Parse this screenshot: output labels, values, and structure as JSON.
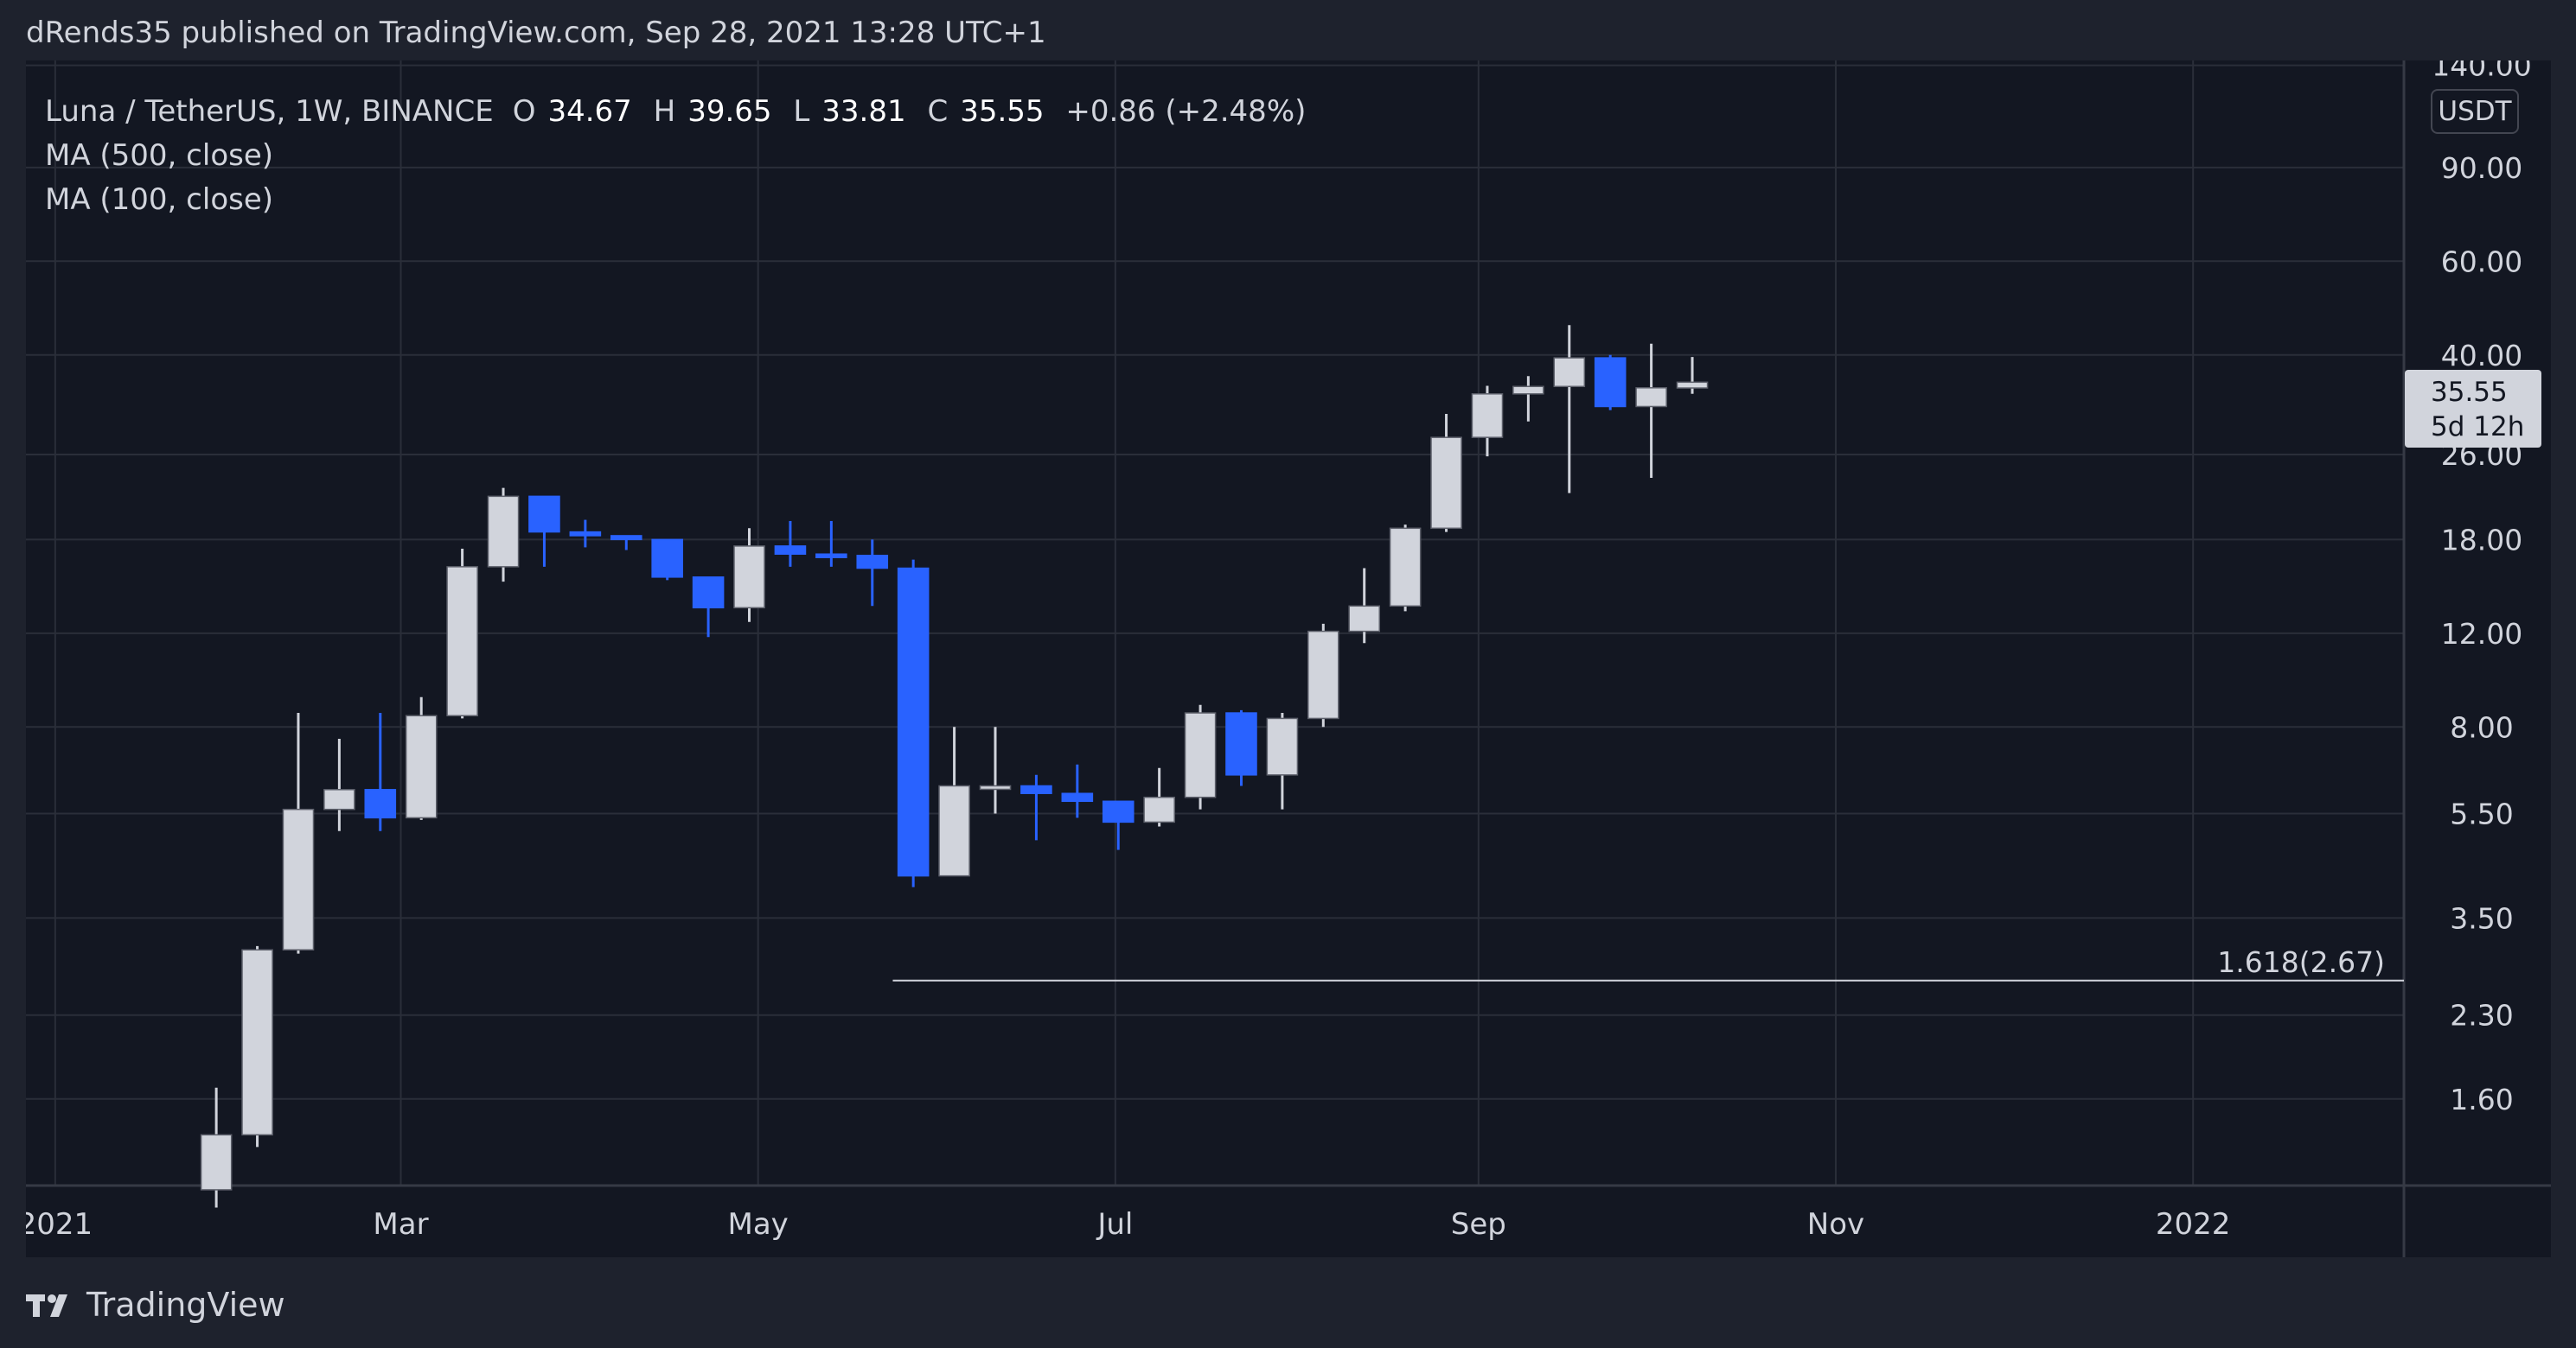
{
  "header": {
    "attribution": "dRends35 published on TradingView.com, Sep 28, 2021 13:28 UTC+1"
  },
  "legend": {
    "symbol": "Luna / TetherUS, 1W, BINANCE",
    "open": {
      "prefix": "O",
      "value": "34.67"
    },
    "high": {
      "prefix": "H",
      "value": "39.65"
    },
    "low": {
      "prefix": "L",
      "value": "33.81"
    },
    "close": {
      "prefix": "C",
      "value": "35.55"
    },
    "change": "+0.86 (+2.48%)",
    "indicators": [
      "MA (500, close)",
      "MA (100, close)"
    ]
  },
  "price_axis": {
    "currency": "USDT",
    "current_price": "35.55",
    "countdown": "5d 12h"
  },
  "footer": {
    "brand": "TradingView"
  },
  "colors": {
    "background": "#131722",
    "frame": "#1e222d",
    "grid": "#2a2e39",
    "up": "#d1d4dc",
    "down": "#2962ff",
    "text": "#d1d4dc"
  },
  "chart_data": {
    "type": "candlestick",
    "scale": "log",
    "timeframe": "1W",
    "symbol": "LUNA/USDT",
    "x_ticks": [
      {
        "date": "2021-01-01",
        "label": "2021"
      },
      {
        "date": "2021-03-01",
        "label": "Mar"
      },
      {
        "date": "2021-05-01",
        "label": "May"
      },
      {
        "date": "2021-07-01",
        "label": "Jul"
      },
      {
        "date": "2021-09-01",
        "label": "Sep"
      },
      {
        "date": "2021-11-01",
        "label": "Nov"
      },
      {
        "date": "2022-01-01",
        "label": "2022"
      }
    ],
    "y_ticks": [
      "1.60",
      "2.30",
      "3.50",
      "5.50",
      "8.00",
      "12.00",
      "18.00",
      "26.00",
      "40.00",
      "60.00",
      "90.00",
      "140.00"
    ],
    "x_range": [
      "2020-12-27",
      "2022-02-06"
    ],
    "y_range": [
      1.1,
      143
    ],
    "candles": [
      {
        "date": "2021-01-25",
        "o": 1.08,
        "h": 1.68,
        "l": 1.0,
        "c": 1.37
      },
      {
        "date": "2021-02-01",
        "o": 1.37,
        "h": 3.1,
        "l": 1.3,
        "c": 3.05
      },
      {
        "date": "2021-02-08",
        "o": 3.05,
        "h": 8.5,
        "l": 3.0,
        "c": 5.6
      },
      {
        "date": "2021-02-15",
        "o": 5.6,
        "h": 7.6,
        "l": 5.1,
        "c": 6.1
      },
      {
        "date": "2021-02-22",
        "o": 6.1,
        "h": 8.5,
        "l": 5.1,
        "c": 5.4
      },
      {
        "date": "2021-03-01",
        "o": 5.4,
        "h": 9.1,
        "l": 5.35,
        "c": 8.4
      },
      {
        "date": "2021-03-08",
        "o": 8.4,
        "h": 17.3,
        "l": 8.3,
        "c": 16.0
      },
      {
        "date": "2021-03-15",
        "o": 16.0,
        "h": 22.5,
        "l": 15.0,
        "c": 21.7
      },
      {
        "date": "2021-03-22",
        "o": 21.7,
        "h": 21.7,
        "l": 16.0,
        "c": 18.6
      },
      {
        "date": "2021-03-29",
        "o": 18.6,
        "h": 19.6,
        "l": 17.4,
        "c": 18.3
      },
      {
        "date": "2021-04-05",
        "o": 18.3,
        "h": 18.3,
        "l": 17.2,
        "c": 18.0
      },
      {
        "date": "2021-04-12",
        "o": 18.0,
        "h": 18.0,
        "l": 15.1,
        "c": 15.3
      },
      {
        "date": "2021-04-19",
        "o": 15.3,
        "h": 15.3,
        "l": 11.8,
        "c": 13.4
      },
      {
        "date": "2021-04-26",
        "o": 13.4,
        "h": 18.9,
        "l": 12.6,
        "c": 17.5
      },
      {
        "date": "2021-05-03",
        "o": 17.5,
        "h": 19.5,
        "l": 16.0,
        "c": 16.9
      },
      {
        "date": "2021-05-10",
        "o": 16.9,
        "h": 19.5,
        "l": 16.0,
        "c": 16.8
      },
      {
        "date": "2021-05-17",
        "o": 16.8,
        "h": 18.0,
        "l": 13.5,
        "c": 15.9
      },
      {
        "date": "2021-05-24",
        "o": 15.9,
        "h": 16.5,
        "l": 4.0,
        "c": 4.2
      },
      {
        "date": "2021-05-31",
        "o": 4.2,
        "h": 8.0,
        "l": 4.2,
        "c": 6.2
      },
      {
        "date": "2021-06-07",
        "o": 6.2,
        "h": 8.0,
        "l": 5.5,
        "c": 6.2
      },
      {
        "date": "2021-06-14",
        "o": 6.2,
        "h": 6.5,
        "l": 4.9,
        "c": 6.0
      },
      {
        "date": "2021-06-21",
        "o": 6.0,
        "h": 6.8,
        "l": 5.4,
        "c": 5.8
      },
      {
        "date": "2021-06-28",
        "o": 5.8,
        "h": 5.8,
        "l": 4.7,
        "c": 5.3
      },
      {
        "date": "2021-07-05",
        "o": 5.3,
        "h": 6.7,
        "l": 5.2,
        "c": 5.9
      },
      {
        "date": "2021-07-12",
        "o": 5.9,
        "h": 8.8,
        "l": 5.6,
        "c": 8.5
      },
      {
        "date": "2021-07-19",
        "o": 8.5,
        "h": 8.6,
        "l": 6.2,
        "c": 6.5
      },
      {
        "date": "2021-07-26",
        "o": 6.5,
        "h": 8.5,
        "l": 5.6,
        "c": 8.3
      },
      {
        "date": "2021-08-02",
        "o": 8.3,
        "h": 12.5,
        "l": 8.0,
        "c": 12.1
      },
      {
        "date": "2021-08-09",
        "o": 12.1,
        "h": 15.9,
        "l": 11.5,
        "c": 13.5
      },
      {
        "date": "2021-08-16",
        "o": 13.5,
        "h": 19.2,
        "l": 13.2,
        "c": 18.9
      },
      {
        "date": "2021-08-23",
        "o": 18.9,
        "h": 31.0,
        "l": 18.6,
        "c": 28.0
      },
      {
        "date": "2021-08-30",
        "o": 28.0,
        "h": 35.0,
        "l": 25.8,
        "c": 33.8
      },
      {
        "date": "2021-09-06",
        "o": 33.8,
        "h": 36.5,
        "l": 30.0,
        "c": 34.9
      },
      {
        "date": "2021-09-13",
        "o": 34.9,
        "h": 45.5,
        "l": 22.0,
        "c": 39.5
      },
      {
        "date": "2021-09-20",
        "o": 39.5,
        "h": 40.0,
        "l": 31.5,
        "c": 32.0
      },
      {
        "date": "2021-09-27",
        "o": 32.0,
        "h": 42.0,
        "l": 23.5,
        "c": 34.7
      },
      {
        "date": "2021-10-04",
        "o": 34.67,
        "h": 39.65,
        "l": 33.81,
        "c": 35.55
      }
    ],
    "annotations": [
      {
        "type": "horizontal_ray",
        "start_date": "2021-05-24",
        "price": 2.67,
        "label": "1.618(2.67)"
      }
    ]
  }
}
